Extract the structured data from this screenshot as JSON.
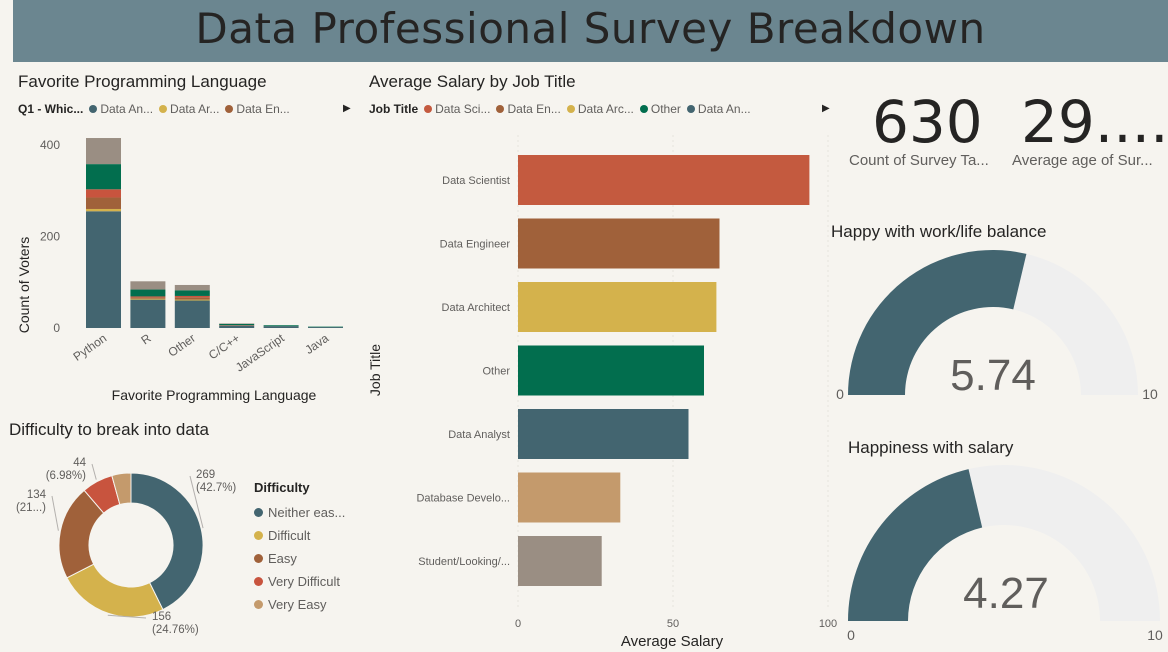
{
  "header": {
    "title": "Data Professional Survey Breakdown"
  },
  "language_chart": {
    "title": "Favorite Programming Language",
    "legend_label": "Q1 - Whic...",
    "legend_items": [
      {
        "label": "Data An...",
        "color": "#436570"
      },
      {
        "label": "Data Ar...",
        "color": "#d4b24c"
      },
      {
        "label": "Data En...",
        "color": "#a0613a"
      }
    ],
    "xlabel": "Favorite Programming Language",
    "ylabel": "Count of Voters",
    "yticks": [
      "0",
      "200",
      "400"
    ],
    "categories": [
      "Python",
      "R",
      "Other",
      "C/C++",
      "JavaScript",
      "Java"
    ]
  },
  "salary_chart": {
    "title": "Average Salary by Job Title",
    "legend_label": "Job Title",
    "legend_items": [
      {
        "label": "Data Sci...",
        "color": "#c45a3f"
      },
      {
        "label": "Data En...",
        "color": "#a0613a"
      },
      {
        "label": "Data Arc...",
        "color": "#d4b24c"
      },
      {
        "label": "Other",
        "color": "#026e4e"
      },
      {
        "label": "Data An...",
        "color": "#436570"
      }
    ],
    "xlabel": "Average Salary",
    "ylabel": "Job Title",
    "xticks": [
      "0",
      "50",
      "100"
    ]
  },
  "difficulty_chart": {
    "title": "Difficulty to break into data",
    "legend_title": "Difficulty",
    "legend_items": [
      {
        "label": "Neither eas...",
        "color": "#436570"
      },
      {
        "label": "Difficult",
        "color": "#d4b24c"
      },
      {
        "label": "Easy",
        "color": "#a0613a"
      },
      {
        "label": "Very Difficult",
        "color": "#c8543e"
      },
      {
        "label": "Very Easy",
        "color": "#c49a6c"
      }
    ],
    "labels": [
      {
        "value": "269",
        "pct": "(42.7%)"
      },
      {
        "value": "156",
        "pct": "(24.76%)"
      },
      {
        "value": "134",
        "pct": "(21...)"
      },
      {
        "value": "44",
        "pct": "(6.98%)"
      }
    ]
  },
  "kpis": [
    {
      "value": "630",
      "label": "Count of Survey Ta..."
    },
    {
      "value": "29....",
      "label": "Average age of Sur..."
    }
  ],
  "gauges": [
    {
      "title": "Happy with work/life balance",
      "value": "5.74",
      "min": "0",
      "max": "10"
    },
    {
      "title": "Happiness with salary",
      "value": "4.27",
      "min": "0",
      "max": "10"
    }
  ],
  "chart_data": [
    {
      "type": "bar",
      "title": "Favorite Programming Language",
      "xlabel": "Favorite Programming Language",
      "ylabel": "Count of Voters",
      "ylim": [
        0,
        450
      ],
      "stacked": true,
      "categories": [
        "Python",
        "R",
        "Other",
        "C/C++",
        "JavaScript",
        "Java"
      ],
      "series": [
        {
          "name": "Data An...",
          "color": "#436570",
          "values": [
            255,
            62,
            60,
            5,
            4,
            2
          ]
        },
        {
          "name": "Data Ar...",
          "color": "#d4b24c",
          "values": [
            5,
            2,
            2,
            0,
            0,
            0
          ]
        },
        {
          "name": "Data En...",
          "color": "#a0613a",
          "values": [
            25,
            3,
            5,
            0,
            0,
            0
          ]
        },
        {
          "color": "#c8543e",
          "values": [
            18,
            2,
            3,
            1,
            0,
            0
          ]
        },
        {
          "color": "#026e4e",
          "values": [
            55,
            15,
            12,
            3,
            2,
            1
          ]
        },
        {
          "color": "#9a8e83",
          "values": [
            57,
            18,
            12,
            1,
            0,
            0
          ]
        }
      ]
    },
    {
      "type": "bar",
      "orientation": "horizontal",
      "title": "Average Salary by Job Title",
      "xlabel": "Average Salary",
      "ylabel": "Job Title",
      "xlim": [
        0,
        100
      ],
      "categories": [
        "Data Scientist",
        "Data Engineer",
        "Data Architect",
        "Other",
        "Data Analyst",
        "Database Develo...",
        "Student/Looking/..."
      ],
      "values": [
        94,
        65,
        64,
        60,
        55,
        33,
        27
      ],
      "colors": [
        "#c45a3f",
        "#a0613a",
        "#d4b24c",
        "#026e4e",
        "#436570",
        "#c49a6c",
        "#9a8e83"
      ]
    },
    {
      "type": "pie",
      "title": "Difficulty to break into data",
      "donut": true,
      "categories": [
        "Neither eas...",
        "Difficult",
        "Easy",
        "Very Difficult",
        "Very Easy"
      ],
      "values": [
        269,
        156,
        134,
        44,
        27
      ],
      "colors": [
        "#436570",
        "#d4b24c",
        "#a0613a",
        "#c8543e",
        "#c49a6c"
      ]
    },
    {
      "type": "gauge",
      "title": "Happy with work/life balance",
      "value": 5.74,
      "min": 0,
      "max": 10,
      "fill_color": "#436570",
      "track_color": "#efefef"
    },
    {
      "type": "gauge",
      "title": "Happiness with salary",
      "value": 4.27,
      "min": 0,
      "max": 10,
      "fill_color": "#436570",
      "track_color": "#efefef"
    }
  ]
}
